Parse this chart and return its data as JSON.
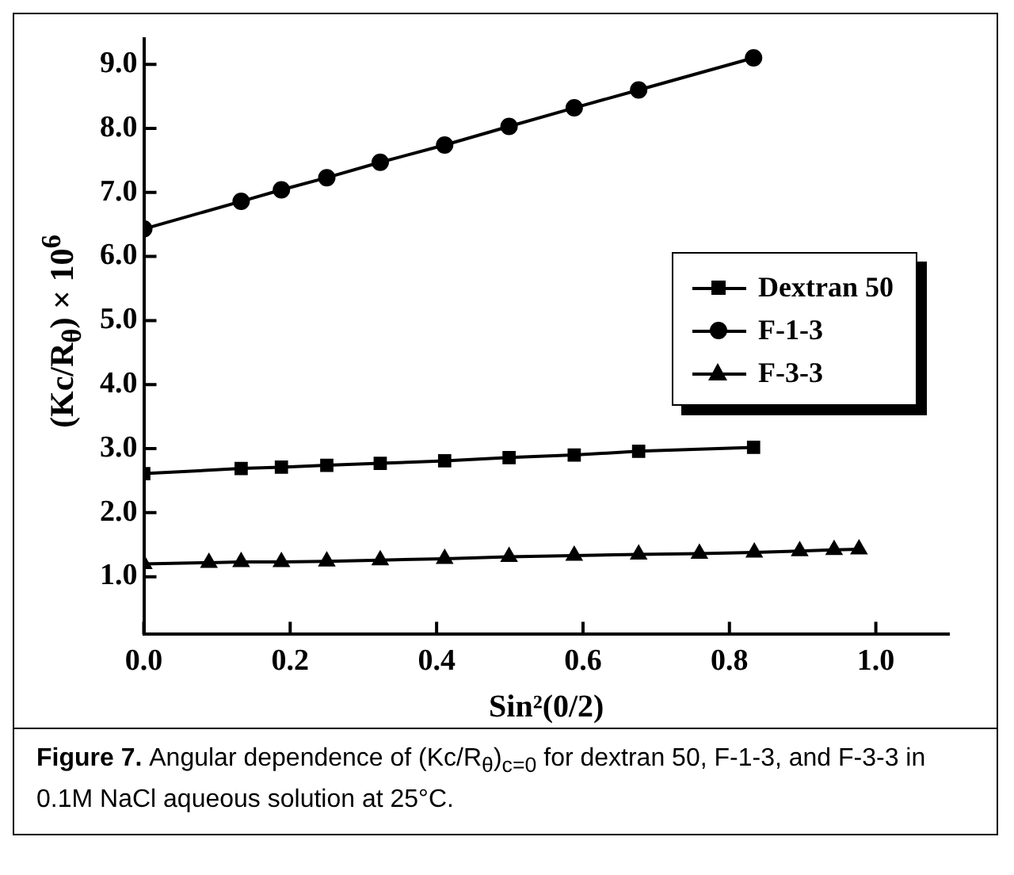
{
  "chart_data": {
    "type": "line",
    "xlabel": "Sin²(0/2)",
    "ylabel": "(Kc/R$_{θ}$) × 10$^{6}$",
    "annotations": [
      "Figure 7.",
      "Angular dependence of (Kc/R$_{θ}$)$_{c=0}$ for dextran 50, F-1-3, and F-3-3 in 0.1M NaCl aqueous solution at 25°C."
    ],
    "xlim": [
      0,
      1.1
    ],
    "xticks": [
      {
        "value": 0,
        "label": "0.0"
      },
      {
        "value": 0.2,
        "label": "0.2"
      },
      {
        "value": 0.4,
        "label": "0.4"
      },
      {
        "value": 0.6,
        "label": "0.6"
      },
      {
        "value": 0.8,
        "label": "0.8"
      },
      {
        "value": 1,
        "label": "1.0"
      }
    ],
    "ylim": [
      0.1,
      9.4
    ],
    "yticks": [
      {
        "value": 1,
        "label": "1.0"
      },
      {
        "value": 2,
        "label": "2.0"
      },
      {
        "value": 3,
        "label": "3.0"
      },
      {
        "value": 4,
        "label": "4.0"
      },
      {
        "value": 5,
        "label": "5.0"
      },
      {
        "value": 6,
        "label": "6.0"
      },
      {
        "value": 7,
        "label": "7.0"
      },
      {
        "value": 8,
        "label": "8.0"
      },
      {
        "value": 9,
        "label": "9.0"
      }
    ],
    "grid": false,
    "legend": "top right",
    "line_style": "solid",
    "series": [
      {
        "name": "Dextran 50",
        "color": "#000000",
        "marker": "square",
        "x": [
          0,
          0.133,
          0.188,
          0.25,
          0.323,
          0.411,
          0.499,
          0.588,
          0.676,
          0.833
        ],
        "values": [
          2.61,
          2.69,
          2.71,
          2.74,
          2.77,
          2.81,
          2.86,
          2.9,
          2.96,
          3.02
        ]
      },
      {
        "name": "F-1-3",
        "color": "#000000",
        "marker": "circle",
        "x": [
          0,
          0.133,
          0.188,
          0.25,
          0.323,
          0.411,
          0.499,
          0.588,
          0.676,
          0.833
        ],
        "values": [
          6.43,
          6.86,
          7.04,
          7.23,
          7.47,
          7.74,
          8.03,
          8.32,
          8.6,
          9.1
        ]
      },
      {
        "name": "F-3-3",
        "color": "#000000",
        "marker": "triangle",
        "x": [
          0,
          0.089,
          0.133,
          0.188,
          0.25,
          0.323,
          0.411,
          0.499,
          0.588,
          0.676,
          0.759,
          0.834,
          0.896,
          0.943,
          0.977
        ],
        "values": [
          1.2,
          1.22,
          1.23,
          1.23,
          1.24,
          1.26,
          1.28,
          1.31,
          1.33,
          1.35,
          1.36,
          1.38,
          1.4,
          1.42,
          1.43
        ]
      }
    ]
  }
}
